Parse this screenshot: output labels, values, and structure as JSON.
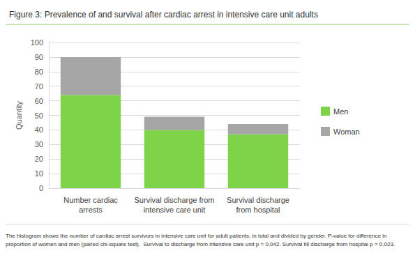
{
  "chart_data": {
    "type": "bar",
    "title": "Figure 3: Prevalence of and survival after cardiac arrest in intensive care unit adults",
    "y_label": "Quantity",
    "categories": [
      "Number cardiac\narrests",
      "Survival discharge from\nintensive care unit",
      "Survival discharge\nfrom hospital"
    ],
    "series": [
      {
        "name": "Men",
        "color": "#7ed348",
        "values": [
          64,
          40,
          37
        ]
      },
      {
        "name": "Woman",
        "color": "#a6a6a6",
        "values": [
          26,
          9,
          7
        ]
      }
    ],
    "stacked": true,
    "ylim": [
      0,
      100
    ],
    "yticks": [
      0,
      10,
      20,
      30,
      40,
      50,
      60,
      70,
      80,
      90,
      100
    ],
    "grid": true,
    "legend": "right",
    "annotations": [
      "The histogram shows the number of cardiac arrest survivors in intensive care unit for adult patients, in total and divided by gender. P-value for difference in proportion of women and men (paired chi-square test).  Survival to discharge from intensive care unit p = 0,042. Survival till discharge from hospital p = 0,023."
    ]
  }
}
